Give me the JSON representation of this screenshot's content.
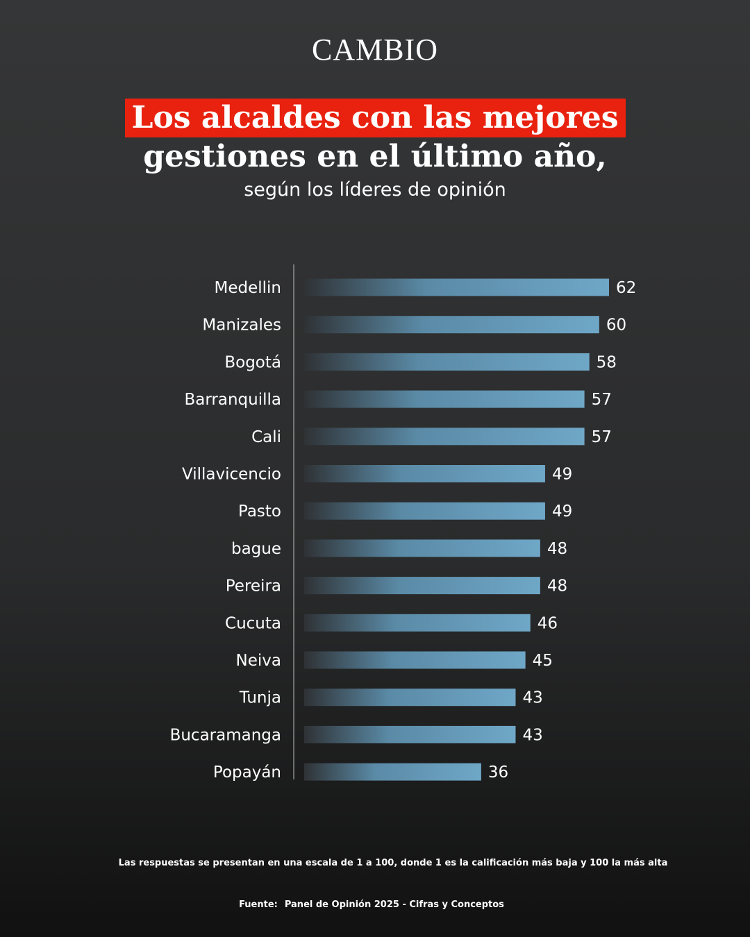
{
  "brand": "CAMBIO",
  "title": {
    "highlight": "Los alcaldes con las mejores",
    "line2": "gestiones en el último año,",
    "subtitle": "según los líderes de opinión"
  },
  "colors": {
    "highlight_bg": "#e8220f",
    "bar_light": "#6fa7c7",
    "bar_dark": "#2f3235"
  },
  "chart_data": {
    "type": "bar",
    "orientation": "horizontal",
    "categories": [
      "Medellin",
      "Manizales",
      "Bogotá",
      "Barranquilla",
      "Cali",
      "Villavicencio",
      "Pasto",
      "bague",
      "Pereira",
      "Cucuta",
      "Neiva",
      "Tunja",
      "Bucaramanga",
      "Popayán"
    ],
    "values": [
      62,
      60,
      58,
      57,
      57,
      49,
      49,
      48,
      48,
      46,
      45,
      43,
      43,
      36
    ],
    "data_labels": [
      "62",
      "60",
      "58",
      "57",
      "57",
      "49",
      "49",
      "48",
      "48",
      "46",
      "45",
      "43",
      "43",
      "36"
    ],
    "xlim": [
      0,
      62
    ],
    "grid": false,
    "legend": "none"
  },
  "footer": {
    "note": "Las respuestas se presentan en una escala de 1 a 100, donde 1 es la calificación más baja y 100 la más alta",
    "source_label": "Fuente:",
    "source_text": "Panel de Opinión 2025 - Cifras y Conceptos"
  }
}
